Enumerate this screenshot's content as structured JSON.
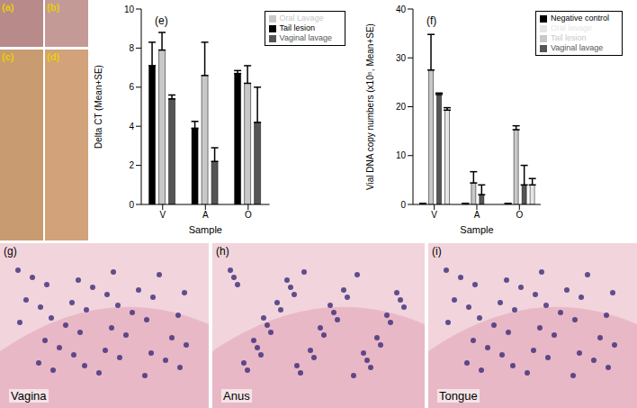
{
  "chart_data": [
    {
      "type": "bar",
      "annotation": "(e)",
      "x_label": "Sample",
      "y_label": "Delta CT (Mean+SE)",
      "categories": [
        "V",
        "A",
        "O"
      ],
      "ylim": [
        0,
        10
      ],
      "yticks": [
        0,
        2,
        4,
        6,
        8,
        10
      ],
      "legend": "upper right",
      "series": [
        {
          "name": "Tail lesion",
          "color": "#000000",
          "values": [
            7.1,
            3.9,
            6.7
          ],
          "errors": [
            1.2,
            0.35,
            0.15
          ]
        },
        {
          "name": "Oral Lavage",
          "color": "#c8c8c8",
          "values": [
            7.9,
            6.6,
            6.2
          ],
          "errors": [
            0.9,
            1.7,
            0.9
          ]
        },
        {
          "name": "Vaginal lavage",
          "color": "#555555",
          "values": [
            5.4,
            2.2,
            4.2
          ],
          "errors": [
            0.2,
            0.7,
            1.8
          ]
        }
      ]
    },
    {
      "type": "bar",
      "annotation": "(f)",
      "x_label": "Sample",
      "y_label": "Vial DNA copy numbers (x10⁵, Mean+SE)",
      "categories": [
        "V",
        "A",
        "O"
      ],
      "ylim": [
        0,
        40
      ],
      "yticks": [
        0,
        10,
        20,
        30,
        40
      ],
      "legend": "upper right",
      "series": [
        {
          "name": "Negative control",
          "color": "#000000",
          "values": [
            0.2,
            0.2,
            0.2
          ],
          "errors": [
            0,
            0,
            0
          ]
        },
        {
          "name": "Tail lesion",
          "color": "#c8c8c8",
          "values": [
            27.5,
            4.4,
            15.3
          ],
          "errors": [
            7.3,
            2.3,
            0.8
          ]
        },
        {
          "name": "Vaginal lavage",
          "color": "#555555",
          "values": [
            22.5,
            2.0,
            4.0
          ],
          "errors": [
            0.3,
            2.0,
            4.0
          ]
        },
        {
          "name": "Oral lavage",
          "color": "#e6e6e6",
          "values": [
            19.3,
            0,
            4.0
          ],
          "errors": [
            0.5,
            0,
            1.3
          ]
        }
      ]
    }
  ],
  "photos": [
    {
      "label": "(a)"
    },
    {
      "label": "(b)"
    },
    {
      "label": "(c)"
    },
    {
      "label": "(d)"
    }
  ],
  "histology": [
    {
      "label": "(g)",
      "caption": "Vagina"
    },
    {
      "label": "(h)",
      "caption": "Anus"
    },
    {
      "label": "(i)",
      "caption": "Tongue"
    }
  ]
}
